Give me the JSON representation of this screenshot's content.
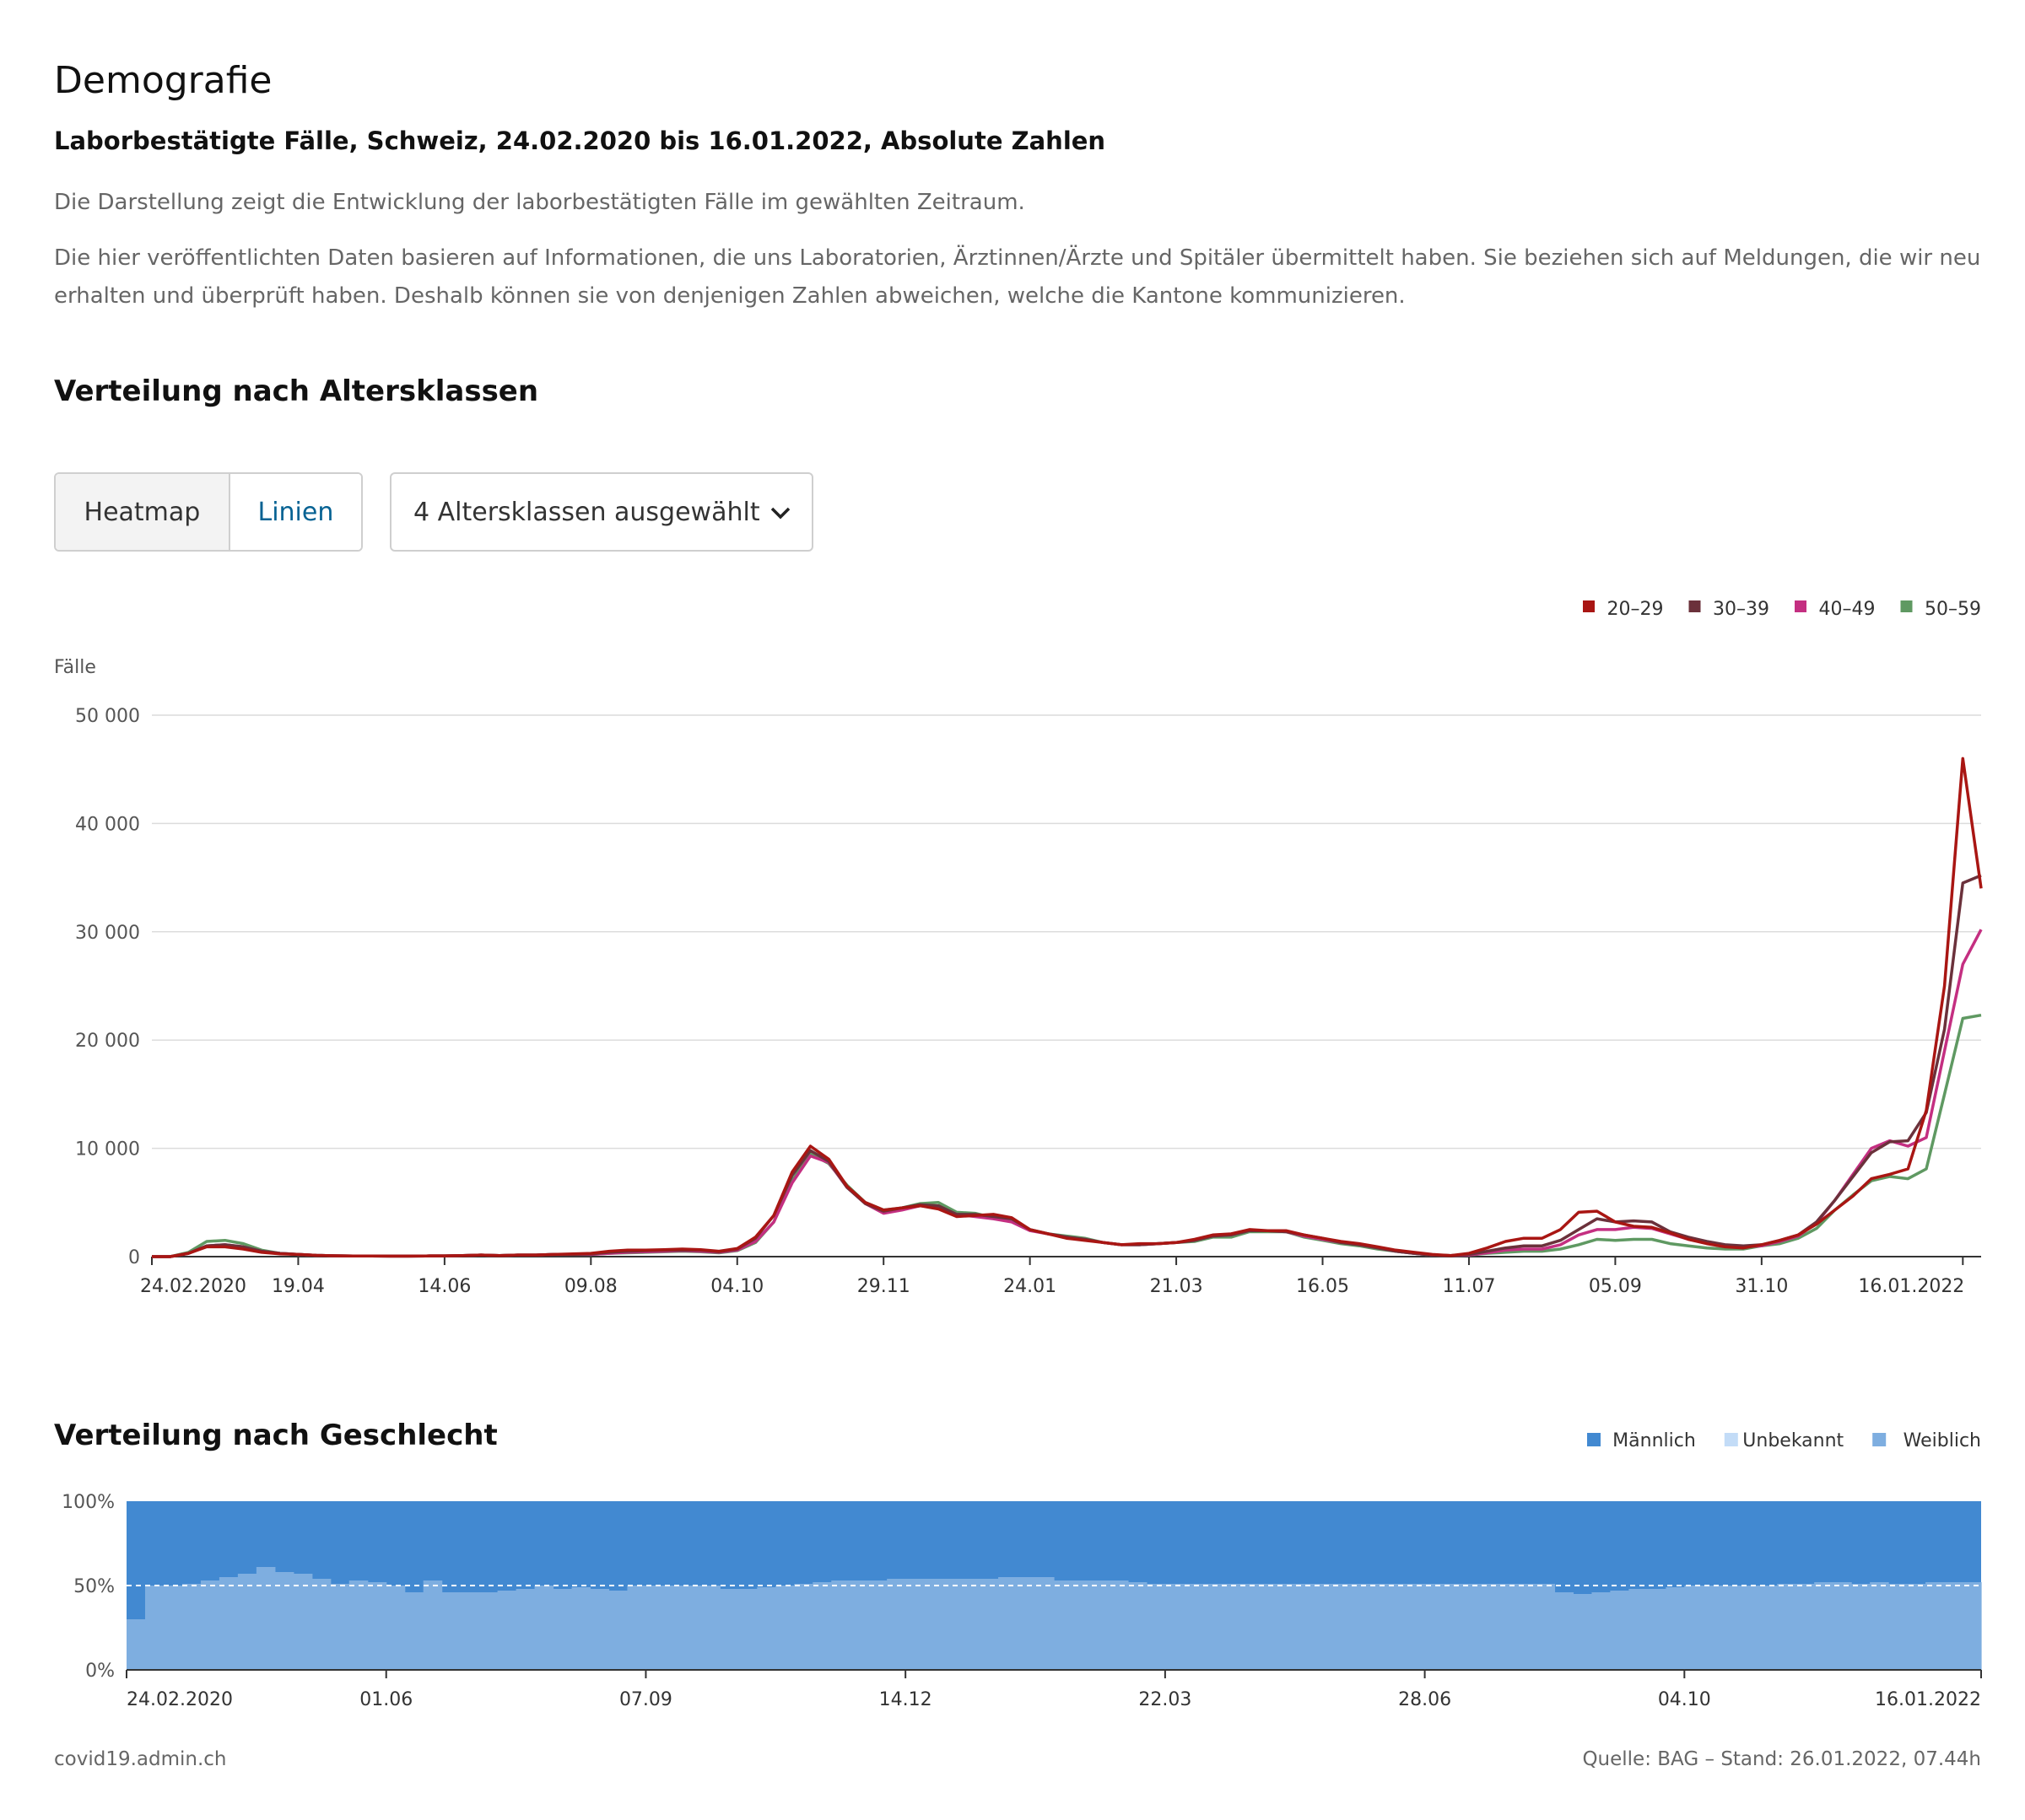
{
  "page": {
    "title": "Demografie",
    "subtitle": "Laborbestätigte Fälle, Schweiz, 24.02.2020 bis 16.01.2022, Absolute Zahlen",
    "description1": "Die Darstellung zeigt die Entwicklung der laborbestätigten Fälle im gewählten Zeitraum.",
    "description2": "Die hier veröffentlichten Daten basieren auf Informationen, die uns Laboratorien, Ärztinnen/Ärzte und Spitäler übermittelt haben. Sie beziehen sich auf Meldungen, die wir neu erhalten und überprüft haben. Deshalb können sie von denjenigen Zahlen abweichen, welche die Kantone kommunizieren."
  },
  "age_section": {
    "title": "Verteilung nach Altersklassen",
    "toggle": {
      "heatmap_label": "Heatmap",
      "linien_label": "Linien",
      "active": "Linien"
    },
    "select_label": "4 Altersklassen ausgewählt"
  },
  "sex_section": {
    "title": "Verteilung nach Geschlecht"
  },
  "footer": {
    "left": "covid19.admin.ch",
    "right": "Quelle: BAG – Stand: 26.01.2022, 07.44h"
  },
  "colors": {
    "accent": "#066293",
    "male": "#4289d1",
    "unknown": "#c3dcf7",
    "female": "#7eaee0"
  },
  "chart_data": [
    {
      "type": "line",
      "ylabel": "Fälle",
      "ylim": [
        0,
        50000
      ],
      "yticks": [
        0,
        10000,
        20000,
        30000,
        40000,
        50000
      ],
      "ytick_labels": [
        "0",
        "10 000",
        "20 000",
        "30 000",
        "40 000",
        "50 000"
      ],
      "xtick_labels": [
        "24.02.2020",
        "19.04",
        "14.06",
        "09.08",
        "04.10",
        "29.11",
        "24.01",
        "21.03",
        "16.05",
        "11.07",
        "05.09",
        "31.10",
        "16.01.2022"
      ],
      "xtick_index": [
        0,
        8,
        16,
        24,
        32,
        40,
        48,
        56,
        64,
        72,
        80,
        88,
        99
      ],
      "x_unit": "week (0 = 24.02.2020, 99 = 16.01.2022)",
      "grid": true,
      "legend_position": "top-right",
      "series": [
        {
          "name": "20–29",
          "color": "#a91613",
          "values": [
            0,
            0,
            300,
            900,
            900,
            700,
            400,
            250,
            200,
            120,
            80,
            60,
            60,
            50,
            50,
            60,
            70,
            100,
            150,
            100,
            150,
            150,
            200,
            250,
            300,
            500,
            600,
            600,
            650,
            700,
            650,
            500,
            750,
            1800,
            3800,
            7800,
            10200,
            9000,
            6500,
            5000,
            4300,
            4500,
            4700,
            4400,
            3700,
            3800,
            3900,
            3600,
            2500,
            2100,
            1700,
            1500,
            1300,
            1100,
            1200,
            1200,
            1300,
            1600,
            2000,
            2100,
            2500,
            2400,
            2400,
            2000,
            1700,
            1400,
            1200,
            900,
            600,
            400,
            200,
            100,
            300,
            800,
            1400,
            1700,
            1700,
            2500,
            4100,
            4200,
            3200,
            2800,
            2700,
            2200,
            1600,
            1200,
            900,
            800,
            1100,
            1500,
            2000,
            3000,
            4300,
            5600,
            7200,
            7600,
            8100,
            13500,
            25000,
            46000,
            34000
          ]
        },
        {
          "name": "30–39",
          "color": "#6b313b",
          "values": [
            0,
            0,
            300,
            1000,
            1100,
            900,
            500,
            300,
            200,
            120,
            80,
            60,
            60,
            50,
            50,
            60,
            70,
            100,
            150,
            100,
            150,
            150,
            200,
            200,
            250,
            400,
            500,
            550,
            600,
            600,
            600,
            450,
            700,
            1700,
            3800,
            7500,
            9800,
            8800,
            6400,
            4900,
            4200,
            4500,
            4800,
            4700,
            3900,
            3900,
            3700,
            3500,
            2500,
            2100,
            1800,
            1600,
            1300,
            1100,
            1100,
            1200,
            1300,
            1500,
            1900,
            2000,
            2400,
            2400,
            2300,
            2000,
            1700,
            1300,
            1100,
            800,
            500,
            300,
            150,
            100,
            200,
            500,
            800,
            1000,
            1000,
            1500,
            2500,
            3500,
            3200,
            3300,
            3200,
            2300,
            1800,
            1400,
            1100,
            1000,
            1100,
            1500,
            2000,
            3200,
            5200,
            7400,
            9600,
            10600,
            10700,
            13300,
            21000,
            34500,
            35200
          ]
        },
        {
          "name": "40–49",
          "color": "#c42f81",
          "values": [
            0,
            0,
            300,
            1000,
            1100,
            900,
            500,
            300,
            200,
            120,
            80,
            60,
            60,
            50,
            50,
            60,
            70,
            100,
            150,
            100,
            150,
            150,
            200,
            200,
            200,
            300,
            400,
            450,
            500,
            550,
            500,
            400,
            600,
            1400,
            3200,
            6800,
            9300,
            8700,
            6400,
            4900,
            4000,
            4300,
            4700,
            4600,
            3900,
            3700,
            3500,
            3200,
            2400,
            2100,
            1800,
            1600,
            1300,
            1100,
            1100,
            1200,
            1300,
            1500,
            1900,
            2000,
            2400,
            2400,
            2300,
            1900,
            1600,
            1300,
            1100,
            800,
            500,
            300,
            150,
            100,
            150,
            350,
            600,
            700,
            700,
            1100,
            2000,
            2500,
            2500,
            2700,
            2600,
            2100,
            1600,
            1300,
            1000,
            900,
            1000,
            1400,
            1900,
            3100,
            5200,
            7600,
            10000,
            10700,
            10200,
            11000,
            19000,
            27000,
            30200
          ]
        },
        {
          "name": "50–59",
          "color": "#5f9962",
          "values": [
            0,
            0,
            400,
            1400,
            1500,
            1200,
            600,
            300,
            200,
            120,
            80,
            60,
            60,
            50,
            50,
            60,
            70,
            100,
            150,
            100,
            150,
            150,
            200,
            200,
            200,
            300,
            350,
            400,
            450,
            500,
            450,
            350,
            550,
            1300,
            3200,
            7000,
            9500,
            8600,
            6600,
            5000,
            4300,
            4500,
            4900,
            5000,
            4100,
            4000,
            3600,
            3400,
            2500,
            2100,
            1900,
            1700,
            1300,
            1100,
            1100,
            1200,
            1300,
            1400,
            1800,
            1800,
            2300,
            2300,
            2300,
            1800,
            1500,
            1200,
            1000,
            700,
            500,
            300,
            150,
            100,
            150,
            300,
            400,
            500,
            500,
            700,
            1100,
            1600,
            1500,
            1600,
            1600,
            1200,
            1000,
            800,
            700,
            700,
            1000,
            1200,
            1700,
            2600,
            4300,
            5700,
            7000,
            7400,
            7200,
            8100,
            15000,
            22000,
            22300
          ]
        }
      ]
    },
    {
      "type": "area",
      "stacked_percent": true,
      "ylim": [
        0,
        100
      ],
      "yticks": [
        0,
        50,
        100
      ],
      "ytick_labels": [
        "0%",
        "50%",
        "100%"
      ],
      "xtick_labels": [
        "24.02.2020",
        "01.06",
        "07.09",
        "14.12",
        "22.03",
        "28.06",
        "04.10",
        "16.01.2022"
      ],
      "xtick_index": [
        0,
        14,
        28,
        42,
        56,
        70,
        84,
        99
      ],
      "reference_line": 50,
      "legend_position": "top-right",
      "series_names": [
        "Männlich",
        "Unbekannt",
        "Weiblich"
      ],
      "series_colors": [
        "#4289d1",
        "#c3dcf7",
        "#7eaee0"
      ],
      "female_share": [
        30,
        50,
        50,
        51,
        53,
        55,
        57,
        61,
        58,
        57,
        54,
        51,
        53,
        52,
        50,
        46,
        53,
        46,
        46,
        46,
        47,
        48,
        50,
        48,
        49,
        48,
        47,
        50,
        50,
        50,
        50,
        50,
        48,
        48,
        49,
        50,
        51,
        52,
        53,
        53,
        53,
        54,
        54,
        54,
        54,
        54,
        54,
        55,
        55,
        55,
        53,
        53,
        53,
        53,
        52,
        51,
        51,
        51,
        51,
        51,
        51,
        51,
        51,
        51,
        51,
        51,
        51,
        51,
        51,
        51,
        51,
        51,
        51,
        51,
        51,
        51,
        51,
        46,
        45,
        46,
        47,
        48,
        48,
        49,
        50,
        50,
        50,
        50,
        50,
        51,
        51,
        52,
        52,
        51,
        52,
        51,
        51,
        52,
        52,
        52
      ]
    }
  ]
}
